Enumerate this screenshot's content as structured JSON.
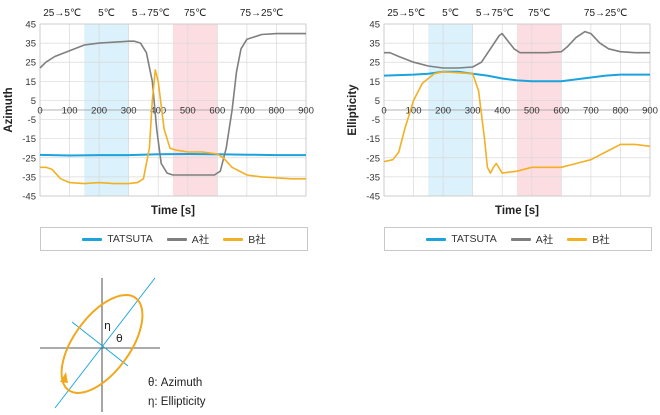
{
  "colors": {
    "tatsuta": "#1aa3dd",
    "a_company": "#7f7f7f",
    "b_company": "#f2b024",
    "band_cold": "#dbf1fb",
    "band_hot": "#fcdde1",
    "ellipse": "#f2a81d",
    "diagram_axis": "#1aa3dd"
  },
  "phases": [
    "25→5℃",
    "5℃",
    "5→75℃",
    "75℃",
    "75→25℃"
  ],
  "legend": [
    {
      "label": "TATSUTA",
      "color": "#1aa3dd"
    },
    {
      "label": "A社",
      "color": "#7f7f7f"
    },
    {
      "label": "B社",
      "color": "#f2b024"
    }
  ],
  "diagram": {
    "eta_symbol": "η",
    "theta_symbol": "θ",
    "note_theta": "θ: Azimuth",
    "note_eta": "η: Ellipticity"
  },
  "chart_data": [
    {
      "type": "line",
      "xlabel": "Time [s]",
      "ylabel": "Azimuth",
      "xlim": [
        0,
        900
      ],
      "ylim": [
        -45,
        45
      ],
      "xticks": [
        0,
        100,
        200,
        300,
        400,
        500,
        600,
        700,
        800,
        900
      ],
      "yticks": [
        45,
        35,
        25,
        15,
        5,
        -5,
        -15,
        -25,
        -35,
        -45
      ],
      "grid": true,
      "bands": [
        {
          "from": 150,
          "to": 300,
          "kind": "cold"
        },
        {
          "from": 450,
          "to": 600,
          "kind": "hot"
        }
      ],
      "series": [
        {
          "name": "TATSUTA",
          "key": "tatsuta",
          "points": [
            [
              0,
              -23.5
            ],
            [
              100,
              -23.8
            ],
            [
              200,
              -23.6
            ],
            [
              300,
              -23.6
            ],
            [
              400,
              -23.2
            ],
            [
              500,
              -23
            ],
            [
              600,
              -23.2
            ],
            [
              700,
              -23.4
            ],
            [
              800,
              -23.6
            ],
            [
              900,
              -23.6
            ]
          ]
        },
        {
          "name": "A社",
          "key": "a_company",
          "points": [
            [
              0,
              22
            ],
            [
              20,
              25
            ],
            [
              50,
              28
            ],
            [
              100,
              31
            ],
            [
              150,
              34
            ],
            [
              200,
              35
            ],
            [
              250,
              35.5
            ],
            [
              300,
              36
            ],
            [
              320,
              36
            ],
            [
              340,
              35
            ],
            [
              360,
              30
            ],
            [
              380,
              15
            ],
            [
              395,
              -10
            ],
            [
              410,
              -28
            ],
            [
              430,
              -33
            ],
            [
              450,
              -34
            ],
            [
              500,
              -34
            ],
            [
              550,
              -34
            ],
            [
              590,
              -34
            ],
            [
              610,
              -32
            ],
            [
              630,
              -20
            ],
            [
              650,
              0
            ],
            [
              665,
              20
            ],
            [
              680,
              32
            ],
            [
              700,
              37
            ],
            [
              750,
              39.5
            ],
            [
              800,
              40
            ],
            [
              850,
              40
            ],
            [
              900,
              40
            ]
          ]
        },
        {
          "name": "B社",
          "key": "b_company",
          "points": [
            [
              0,
              -30
            ],
            [
              20,
              -30
            ],
            [
              40,
              -31
            ],
            [
              70,
              -36
            ],
            [
              100,
              -38
            ],
            [
              150,
              -38.5
            ],
            [
              200,
              -38
            ],
            [
              250,
              -38.5
            ],
            [
              300,
              -38.5
            ],
            [
              330,
              -38
            ],
            [
              350,
              -36
            ],
            [
              370,
              -20
            ],
            [
              380,
              5
            ],
            [
              390,
              21
            ],
            [
              400,
              15
            ],
            [
              420,
              -10
            ],
            [
              440,
              -20
            ],
            [
              460,
              -21
            ],
            [
              500,
              -22
            ],
            [
              550,
              -22
            ],
            [
              600,
              -23
            ],
            [
              620,
              -25
            ],
            [
              650,
              -30
            ],
            [
              700,
              -34
            ],
            [
              750,
              -35
            ],
            [
              800,
              -35.5
            ],
            [
              850,
              -36
            ],
            [
              900,
              -36
            ]
          ]
        }
      ]
    },
    {
      "type": "line",
      "xlabel": "Time [s]",
      "ylabel": "Ellipticity",
      "xlim": [
        0,
        900
      ],
      "ylim": [
        -45,
        45
      ],
      "xticks": [
        0,
        100,
        200,
        300,
        400,
        500,
        600,
        700,
        800,
        900
      ],
      "yticks": [
        45,
        35,
        25,
        15,
        5,
        -5,
        -15,
        -25,
        -35,
        -45
      ],
      "grid": true,
      "bands": [
        {
          "from": 150,
          "to": 300,
          "kind": "cold"
        },
        {
          "from": 450,
          "to": 600,
          "kind": "hot"
        }
      ],
      "series": [
        {
          "name": "TATSUTA",
          "key": "tatsuta",
          "points": [
            [
              0,
              18
            ],
            [
              100,
              18.5
            ],
            [
              150,
              19
            ],
            [
              200,
              20
            ],
            [
              250,
              20
            ],
            [
              300,
              19
            ],
            [
              350,
              18
            ],
            [
              400,
              16.5
            ],
            [
              450,
              15.5
            ],
            [
              500,
              15
            ],
            [
              550,
              15
            ],
            [
              600,
              15
            ],
            [
              650,
              16
            ],
            [
              700,
              17
            ],
            [
              750,
              18
            ],
            [
              800,
              18.5
            ],
            [
              900,
              18.5
            ]
          ]
        },
        {
          "name": "A社",
          "key": "a_company",
          "points": [
            [
              0,
              30
            ],
            [
              20,
              30
            ],
            [
              50,
              28
            ],
            [
              100,
              25
            ],
            [
              150,
              23
            ],
            [
              200,
              22
            ],
            [
              250,
              22
            ],
            [
              300,
              22.5
            ],
            [
              330,
              25
            ],
            [
              360,
              32
            ],
            [
              390,
              39
            ],
            [
              400,
              40
            ],
            [
              420,
              36
            ],
            [
              440,
              32
            ],
            [
              460,
              30
            ],
            [
              500,
              30
            ],
            [
              550,
              30
            ],
            [
              600,
              30.5
            ],
            [
              620,
              33
            ],
            [
              650,
              38
            ],
            [
              680,
              41
            ],
            [
              700,
              40
            ],
            [
              730,
              35
            ],
            [
              760,
              32
            ],
            [
              800,
              30.5
            ],
            [
              850,
              30
            ],
            [
              900,
              30
            ]
          ]
        },
        {
          "name": "B社",
          "key": "b_company",
          "points": [
            [
              0,
              -27
            ],
            [
              30,
              -26
            ],
            [
              50,
              -22
            ],
            [
              70,
              -10
            ],
            [
              100,
              5
            ],
            [
              130,
              14
            ],
            [
              170,
              19
            ],
            [
              200,
              20
            ],
            [
              250,
              19.5
            ],
            [
              300,
              19
            ],
            [
              320,
              10
            ],
            [
              340,
              -15
            ],
            [
              350,
              -30
            ],
            [
              360,
              -33
            ],
            [
              370,
              -30
            ],
            [
              380,
              -28
            ],
            [
              400,
              -33
            ],
            [
              450,
              -32
            ],
            [
              500,
              -30
            ],
            [
              550,
              -30
            ],
            [
              600,
              -30
            ],
            [
              650,
              -28
            ],
            [
              700,
              -26
            ],
            [
              750,
              -22
            ],
            [
              800,
              -18
            ],
            [
              850,
              -18
            ],
            [
              900,
              -19
            ]
          ]
        }
      ]
    }
  ]
}
